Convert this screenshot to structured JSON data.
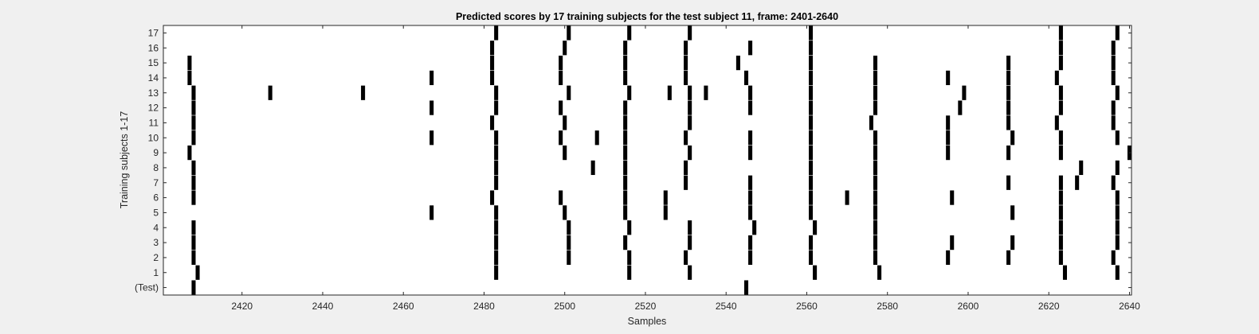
{
  "chart_data": {
    "type": "heatmap",
    "title": "Predicted scores by 17 training subjects for the test subject 11, frame: 2401-2640",
    "xlabel": "Samples",
    "ylabel": "Training subjects 1-17",
    "xlim": [
      2401,
      2640
    ],
    "x_ticks": [
      2420,
      2440,
      2460,
      2480,
      2500,
      2520,
      2540,
      2560,
      2580,
      2600,
      2620,
      2640
    ],
    "row_labels": [
      "(Test)",
      "1",
      "2",
      "3",
      "4",
      "5",
      "6",
      "7",
      "8",
      "9",
      "10",
      "11",
      "12",
      "13",
      "14",
      "15",
      "16",
      "17"
    ],
    "grid": false,
    "legend": "none",
    "colors": {
      "background": "#f0f0f0",
      "plot_bg": "#ffffff",
      "mark": "#000000",
      "axis": "#262626"
    },
    "rows": [
      {
        "label": "(Test)",
        "x": [
          2408,
          2545
        ]
      },
      {
        "label": "1",
        "x": [
          2409,
          2483,
          2516,
          2531,
          2562,
          2578,
          2624,
          2637
        ]
      },
      {
        "label": "2",
        "x": [
          2408,
          2483,
          2501,
          2516,
          2530,
          2546,
          2561,
          2577,
          2595,
          2610,
          2623,
          2636
        ]
      },
      {
        "label": "3",
        "x": [
          2408,
          2483,
          2501,
          2515,
          2531,
          2546,
          2561,
          2577,
          2596,
          2611,
          2623,
          2637
        ]
      },
      {
        "label": "4",
        "x": [
          2408,
          2483,
          2501,
          2516,
          2531,
          2547,
          2562,
          2577,
          2623,
          2637
        ]
      },
      {
        "label": "5",
        "x": [
          2467,
          2483,
          2500,
          2515,
          2525,
          2546,
          2561,
          2577,
          2611,
          2623,
          2637
        ]
      },
      {
        "label": "6",
        "x": [
          2408,
          2482,
          2499,
          2515,
          2525,
          2546,
          2561,
          2570,
          2577,
          2596,
          2623,
          2637
        ]
      },
      {
        "label": "7",
        "x": [
          2408,
          2483,
          2515,
          2530,
          2546,
          2561,
          2577,
          2610,
          2623,
          2627,
          2636
        ]
      },
      {
        "label": "8",
        "x": [
          2408,
          2483,
          2507,
          2515,
          2530,
          2561,
          2577,
          2628,
          2637
        ]
      },
      {
        "label": "9",
        "x": [
          2407,
          2483,
          2500,
          2515,
          2531,
          2546,
          2561,
          2577,
          2595,
          2610,
          2623,
          2640
        ]
      },
      {
        "label": "10",
        "x": [
          2408,
          2467,
          2483,
          2499,
          2508,
          2515,
          2530,
          2546,
          2561,
          2577,
          2595,
          2611,
          2623,
          2637
        ]
      },
      {
        "label": "11",
        "x": [
          2408,
          2482,
          2500,
          2515,
          2531,
          2561,
          2576,
          2595,
          2610,
          2622,
          2636
        ]
      },
      {
        "label": "12",
        "x": [
          2408,
          2467,
          2483,
          2499,
          2515,
          2531,
          2546,
          2561,
          2577,
          2598,
          2610,
          2623,
          2636
        ]
      },
      {
        "label": "13",
        "x": [
          2408,
          2427,
          2450,
          2483,
          2501,
          2516,
          2526,
          2531,
          2535,
          2546,
          2561,
          2577,
          2599,
          2610,
          2623,
          2637
        ]
      },
      {
        "label": "14",
        "x": [
          2407,
          2467,
          2482,
          2499,
          2515,
          2530,
          2545,
          2561,
          2577,
          2595,
          2610,
          2622,
          2636
        ]
      },
      {
        "label": "15",
        "x": [
          2407,
          2482,
          2499,
          2515,
          2530,
          2543,
          2561,
          2577,
          2610,
          2623,
          2636
        ]
      },
      {
        "label": "16",
        "x": [
          2482,
          2500,
          2515,
          2530,
          2546,
          2561,
          2623,
          2636
        ]
      },
      {
        "label": "17",
        "x": [
          2483,
          2501,
          2516,
          2531,
          2561,
          2623,
          2637
        ]
      }
    ]
  }
}
